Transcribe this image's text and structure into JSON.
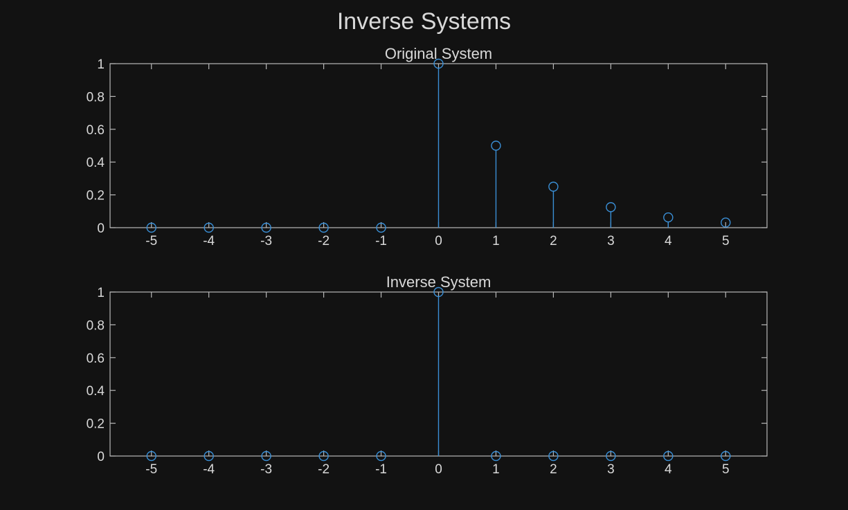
{
  "figure_title": "Inverse Systems",
  "colors": {
    "background": "#121212",
    "text": "#d9d9d9",
    "axes": "#b8b8b8",
    "series": "#3a8fd6"
  },
  "chart_data": [
    {
      "type": "stem",
      "title": "Original System",
      "xlabel": "",
      "ylabel": "",
      "x": [
        -5,
        -4,
        -3,
        -2,
        -1,
        0,
        1,
        2,
        3,
        4,
        5
      ],
      "values": [
        0,
        0,
        0,
        0,
        0,
        1,
        0.5,
        0.25,
        0.125,
        0.0625,
        0.03125
      ],
      "xlim": [
        -5.72,
        5.72
      ],
      "ylim": [
        0,
        1
      ],
      "xticks": [
        "-5",
        "-4",
        "-3",
        "-2",
        "-1",
        "0",
        "1",
        "2",
        "3",
        "4",
        "5"
      ],
      "yticks": [
        "0",
        "0.2",
        "0.4",
        "0.6",
        "0.8",
        "1"
      ],
      "grid": false
    },
    {
      "type": "stem",
      "title": "Inverse System",
      "xlabel": "",
      "ylabel": "",
      "x": [
        -5,
        -4,
        -3,
        -2,
        -1,
        0,
        1,
        2,
        3,
        4,
        5
      ],
      "values": [
        0,
        0,
        0,
        0,
        0,
        1,
        0,
        0,
        0,
        0,
        0
      ],
      "xlim": [
        -5.72,
        5.72
      ],
      "ylim": [
        0,
        1
      ],
      "xticks": [
        "-5",
        "-4",
        "-3",
        "-2",
        "-1",
        "0",
        "1",
        "2",
        "3",
        "4",
        "5"
      ],
      "yticks": [
        "0",
        "0.2",
        "0.4",
        "0.6",
        "0.8",
        "1"
      ],
      "grid": false
    }
  ]
}
